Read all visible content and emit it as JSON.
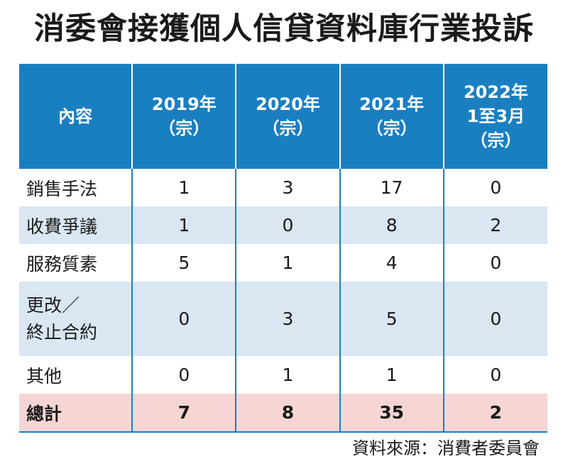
{
  "title": "消委會接獲個人信貸資料庫行業投訴",
  "source": "資料來源：消費者委員會",
  "colors": {
    "header_bg": "#1a7fc1",
    "stripe": "#dae6f1",
    "total_bg": "#f6d6d5"
  },
  "chart_data": {
    "type": "table",
    "columns": [
      {
        "lines": [
          "內容"
        ]
      },
      {
        "lines": [
          "2019年",
          "（宗）"
        ]
      },
      {
        "lines": [
          "2020年",
          "（宗）"
        ]
      },
      {
        "lines": [
          "2021年",
          "（宗）"
        ]
      },
      {
        "lines": [
          "2022年",
          "1至3月",
          "（宗）"
        ]
      }
    ],
    "rows": [
      {
        "label": [
          "銷售手法"
        ],
        "values": [
          "1",
          "3",
          "17",
          "0"
        ]
      },
      {
        "label": [
          "收費爭議"
        ],
        "values": [
          "1",
          "0",
          "8",
          "2"
        ]
      },
      {
        "label": [
          "服務質素"
        ],
        "values": [
          "5",
          "1",
          "4",
          "0"
        ]
      },
      {
        "label": [
          "更改／",
          "終止合約"
        ],
        "values": [
          "0",
          "3",
          "5",
          "0"
        ]
      },
      {
        "label": [
          "其他"
        ],
        "values": [
          "0",
          "1",
          "1",
          "0"
        ]
      },
      {
        "label": [
          "總計"
        ],
        "values": [
          "7",
          "8",
          "35",
          "2"
        ]
      }
    ]
  }
}
